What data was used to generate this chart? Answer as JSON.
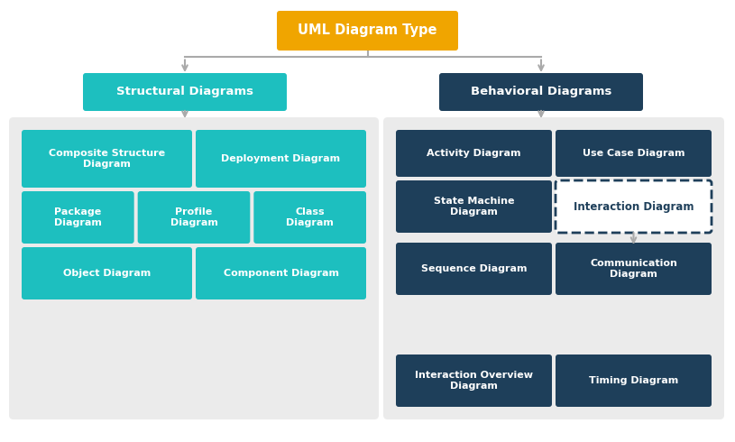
{
  "title": "UML Diagram Type",
  "title_bg": "#F0A500",
  "title_color": "#FFFFFF",
  "structural_label": "Structural Diagrams",
  "structural_bg": "#1DBFBF",
  "structural_color": "#FFFFFF",
  "behavioral_label": "Behavioral Diagrams",
  "behavioral_bg": "#1E3F5A",
  "behavioral_color": "#FFFFFF",
  "teal": "#1DBFBF",
  "dark": "#1E3F5A",
  "white": "#FFFFFF",
  "arrow_color": "#AAAAAA",
  "group_color": "#EBEBEB",
  "struct_boxes": [
    {
      "label": "Composite Structure\nDiagram",
      "col": 0,
      "row": 0,
      "colspan": 1,
      "bg": "#1DBFBF"
    },
    {
      "label": "Deployment Diagram",
      "col": 1,
      "row": 0,
      "colspan": 1,
      "bg": "#1DBFBF"
    },
    {
      "label": "Package\nDiagram",
      "col": 0,
      "row": 1,
      "colspan": 1,
      "bg": "#1DBFBF"
    },
    {
      "label": "Profile\nDiagram",
      "col": 1,
      "row": 1,
      "colspan": 1,
      "bg": "#1DBFBF"
    },
    {
      "label": "Class\nDiagram",
      "col": 2,
      "row": 1,
      "colspan": 1,
      "bg": "#1DBFBF"
    },
    {
      "label": "Object Diagram",
      "col": 0,
      "row": 2,
      "colspan": 1,
      "bg": "#1DBFBF"
    },
    {
      "label": "Component Diagram",
      "col": 1,
      "row": 2,
      "colspan": 1,
      "bg": "#1DBFBF"
    }
  ],
  "behav_upper_boxes": [
    {
      "label": "Activity Diagram",
      "col": 0,
      "row": 0,
      "bg": "#1E3F5A"
    },
    {
      "label": "Use Case Diagram",
      "col": 1,
      "row": 0,
      "bg": "#1E3F5A"
    },
    {
      "label": "State Machine\nDiagram",
      "col": 0,
      "row": 1,
      "bg": "#1E3F5A"
    },
    {
      "label": "Interaction Diagram",
      "col": 1,
      "row": 1,
      "bg": "#FFFFFF",
      "border": "dashed",
      "text_color": "#1E3F5A"
    }
  ],
  "behav_lower_boxes": [
    {
      "label": "Sequence Diagram",
      "col": 0,
      "row": 0,
      "bg": "#1E3F5A"
    },
    {
      "label": "Communication\nDiagram",
      "col": 1,
      "row": 0,
      "bg": "#1E3F5A"
    },
    {
      "label": "Interaction Overview\nDiagram",
      "col": 0,
      "row": 1,
      "bg": "#1E3F5A"
    },
    {
      "label": "Timing Diagram",
      "col": 1,
      "row": 1,
      "bg": "#1E3F5A"
    }
  ]
}
